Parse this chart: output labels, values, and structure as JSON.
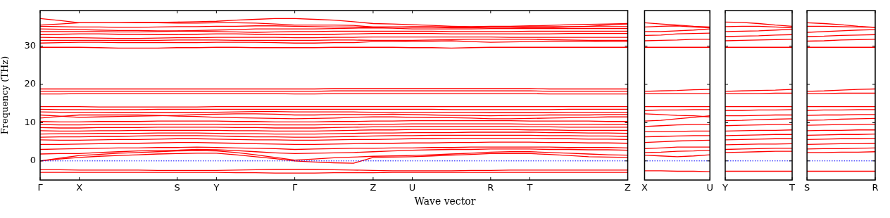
{
  "chart_data": [
    {
      "type": "line",
      "ylabel": "Frequency (THz)",
      "xlabel": "Wave vector",
      "legend": false,
      "marker": "none",
      "categories": [
        "Γ",
        null,
        "X",
        null,
        null,
        null,
        null,
        "S",
        null,
        "Y",
        null,
        null,
        null,
        "Γ",
        null,
        null,
        null,
        "Z",
        null,
        "U",
        null,
        null,
        null,
        "R",
        null,
        "T",
        null,
        null,
        null,
        null,
        "Z"
      ],
      "ylim": [
        -5,
        39.3
      ],
      "yticks": [
        0,
        10,
        20,
        30
      ],
      "ref_lines": [
        {
          "axis": "y",
          "value": 0,
          "color": "#0000ff",
          "line_style": "dotted"
        }
      ],
      "series": [
        {
          "color": "#ff0000",
          "values": [
            -2.3,
            -2.3,
            -2.4,
            -2.4,
            -2.4,
            -2.4,
            -2.5,
            -2.5,
            -2.5,
            -2.5,
            -2.4,
            -2.3,
            -2.2,
            -2.2,
            -2.2,
            -2.3,
            -2.4,
            -2.5,
            -2.6,
            -2.6,
            -2.6,
            -2.6,
            -2.5,
            -2.5,
            -2.4,
            -2.4,
            -2.4,
            -2.4,
            -2.4,
            -2.4,
            -2.4
          ]
        },
        {
          "color": "#ff0000",
          "values": [
            -3.0,
            -3.0,
            -3.0,
            -3.0,
            -3.0,
            -3.0,
            -3.0,
            -3.0,
            -3.0,
            -3.0,
            -3.1,
            -3.1,
            -3.2,
            -3.2,
            -3.2,
            -3.1,
            -3.1,
            -3.1,
            -3.0,
            -3.0,
            -3.0,
            -3.0,
            -3.0,
            -3.0,
            -3.0,
            -3.0,
            -3.0,
            -3.0,
            -3.0,
            -3.0,
            -3.0
          ]
        },
        {
          "color": "#ff0000",
          "values": [
            0,
            0.5,
            0.9,
            1.2,
            1.4,
            1.6,
            1.8,
            1.9,
            2.0,
            2.0,
            1.6,
            1.1,
            0.6,
            0,
            -0.3,
            -0.5,
            -0.6,
            0.9,
            1.0,
            1.1,
            1.3,
            1.5,
            1.7,
            1.9,
            1.9,
            1.9,
            1.7,
            1.4,
            1.1,
            1.0,
            0.9
          ]
        },
        {
          "color": "#ff0000",
          "values": [
            0,
            0.7,
            1.4,
            1.7,
            2.0,
            2.2,
            2.4,
            2.6,
            2.7,
            2.6,
            2.2,
            1.6,
            0.9,
            0.2,
            0.5,
            0.8,
            1.0,
            1.2,
            1.3,
            1.4,
            1.6,
            1.8,
            2.0,
            2.3,
            2.4,
            2.4,
            2.2,
            2.0,
            1.8,
            1.6,
            1.5
          ]
        },
        {
          "color": "#ff0000",
          "values": [
            1.8,
            1.9,
            1.9,
            2.2,
            2.4,
            2.6,
            2.7,
            2.8,
            3.0,
            2.9,
            2.7,
            2.4,
            2.1,
            1.9,
            2.0,
            2.1,
            2.2,
            2.4,
            2.6,
            2.8,
            2.9,
            3.0,
            3.0,
            3.1,
            3.1,
            3.1,
            3.0,
            3.0,
            2.9,
            2.9,
            2.8
          ]
        },
        {
          "color": "#ff0000",
          "values": [
            3.0,
            3.1,
            3.2,
            3.3,
            3.4,
            3.4,
            3.5,
            3.5,
            3.6,
            3.5,
            3.4,
            3.3,
            3.2,
            3.0,
            3.1,
            3.2,
            3.3,
            3.3,
            3.4,
            3.4,
            3.5,
            3.5,
            3.6,
            3.6,
            3.6,
            3.6,
            3.6,
            3.5,
            3.5,
            3.5,
            3.4
          ]
        },
        {
          "color": "#ff0000",
          "values": [
            4.3,
            4.3,
            4.4,
            4.5,
            4.6,
            4.6,
            4.7,
            4.8,
            4.8,
            4.7,
            4.6,
            4.5,
            4.4,
            4.3,
            4.3,
            4.4,
            4.5,
            4.6,
            4.6,
            4.7,
            4.7,
            4.8,
            4.8,
            4.9,
            4.9,
            4.9,
            4.8,
            4.8,
            4.7,
            4.7,
            4.6
          ]
        },
        {
          "color": "#ff0000",
          "values": [
            5.5,
            5.4,
            5.4,
            5.5,
            5.6,
            5.6,
            5.7,
            5.8,
            5.8,
            5.7,
            5.6,
            5.5,
            5.5,
            5.4,
            5.4,
            5.5,
            5.6,
            5.6,
            5.7,
            5.8,
            5.8,
            5.9,
            5.9,
            5.9,
            5.9,
            5.9,
            5.8,
            5.8,
            5.7,
            5.7,
            5.6
          ]
        },
        {
          "color": "#ff0000",
          "values": [
            6.2,
            6.3,
            6.3,
            6.4,
            6.4,
            6.5,
            6.6,
            6.6,
            6.6,
            6.5,
            6.4,
            6.3,
            6.3,
            6.2,
            6.2,
            6.3,
            6.4,
            6.5,
            6.6,
            6.6,
            6.7,
            6.7,
            6.7,
            6.7,
            6.7,
            6.7,
            6.6,
            6.6,
            6.5,
            6.5,
            6.4
          ]
        },
        {
          "color": "#ff0000",
          "values": [
            7.0,
            7.1,
            7.1,
            7.2,
            7.2,
            7.2,
            7.3,
            7.3,
            7.3,
            7.2,
            7.1,
            7.1,
            7.0,
            7.0,
            7.0,
            7.1,
            7.2,
            7.3,
            7.3,
            7.4,
            7.4,
            7.4,
            7.5,
            7.5,
            7.5,
            7.5,
            7.4,
            7.4,
            7.3,
            7.3,
            7.2
          ]
        },
        {
          "color": "#ff0000",
          "values": [
            7.9,
            7.8,
            7.8,
            7.9,
            7.9,
            8.0,
            8.0,
            8.0,
            8.0,
            8.0,
            7.9,
            7.9,
            7.8,
            7.8,
            7.8,
            7.9,
            8.0,
            8.1,
            8.1,
            8.2,
            8.2,
            8.2,
            8.2,
            8.2,
            8.2,
            8.1,
            8.1,
            8.0,
            8.0,
            8.0,
            8.0
          ]
        },
        {
          "color": "#ff0000",
          "values": [
            8.7,
            8.6,
            8.6,
            8.7,
            8.7,
            8.7,
            8.8,
            8.8,
            8.8,
            8.8,
            8.7,
            8.7,
            8.6,
            8.6,
            8.6,
            8.7,
            8.8,
            8.9,
            8.9,
            9.0,
            9.0,
            9.0,
            9.0,
            9.0,
            9.0,
            8.9,
            8.9,
            8.8,
            8.8,
            8.8,
            8.8
          ]
        },
        {
          "color": "#ff0000",
          "values": [
            9.5,
            9.4,
            9.4,
            9.5,
            9.5,
            9.5,
            9.6,
            9.6,
            9.6,
            9.6,
            9.5,
            9.5,
            9.4,
            9.4,
            9.4,
            9.5,
            9.5,
            9.6,
            9.6,
            9.7,
            9.7,
            9.7,
            9.7,
            9.7,
            9.7,
            9.6,
            9.6,
            9.6,
            9.6,
            9.5,
            9.5
          ]
        },
        {
          "color": "#ff0000",
          "values": [
            10.3,
            10.2,
            10.2,
            10.3,
            10.3,
            10.3,
            10.4,
            10.4,
            10.4,
            10.4,
            10.3,
            10.3,
            10.2,
            10.2,
            10.2,
            10.3,
            10.3,
            10.4,
            10.4,
            10.5,
            10.5,
            10.5,
            10.5,
            10.5,
            10.5,
            10.4,
            10.4,
            10.4,
            10.4,
            10.3,
            10.3
          ]
        },
        {
          "color": "#ff0000",
          "values": [
            11.2,
            11.6,
            12.0,
            12.0,
            12.0,
            12.0,
            11.9,
            11.7,
            11.6,
            11.4,
            11.3,
            11.2,
            11.1,
            11.0,
            11.1,
            11.2,
            11.4,
            11.5,
            11.5,
            11.4,
            11.3,
            11.3,
            11.2,
            11.0,
            11.0,
            11.1,
            11.2,
            11.3,
            11.4,
            11.5,
            11.5
          ]
        },
        {
          "color": "#ff0000",
          "values": [
            12.0,
            11.7,
            11.4,
            11.5,
            11.6,
            11.7,
            11.8,
            11.9,
            12.1,
            12.2,
            12.3,
            12.3,
            12.2,
            12.0,
            12.0,
            12.1,
            12.1,
            12.1,
            12.2,
            12.1,
            12.0,
            11.9,
            11.9,
            11.8,
            11.9,
            11.9,
            12.0,
            12.0,
            12.0,
            12.1,
            12.1
          ]
        },
        {
          "color": "#ff0000",
          "values": [
            12.8,
            12.7,
            12.7,
            12.7,
            12.6,
            12.6,
            12.6,
            12.6,
            12.6,
            12.7,
            12.8,
            12.9,
            12.9,
            12.8,
            12.8,
            12.8,
            12.8,
            12.7,
            12.7,
            12.7,
            12.7,
            12.7,
            12.7,
            12.6,
            12.6,
            12.6,
            12.6,
            12.7,
            12.7,
            12.7,
            12.7
          ]
        },
        {
          "color": "#ff0000",
          "values": [
            13.5,
            13.4,
            13.4,
            13.4,
            13.4,
            13.4,
            13.5,
            13.5,
            13.5,
            13.5,
            13.5,
            13.5,
            13.5,
            13.5,
            13.5,
            13.5,
            13.5,
            13.5,
            13.5,
            13.5,
            13.5,
            13.4,
            13.4,
            13.4,
            13.4,
            13.4,
            13.4,
            13.5,
            13.5,
            13.5,
            13.5
          ]
        },
        {
          "color": "#ff0000",
          "values": [
            14.2,
            14.2,
            14.2,
            14.1,
            14.1,
            14.1,
            14.1,
            14.1,
            14.1,
            14.2,
            14.2,
            14.2,
            14.2,
            14.2,
            14.2,
            14.2,
            14.2,
            14.2,
            14.2,
            14.2,
            14.2,
            14.2,
            14.2,
            14.2,
            14.2,
            14.2,
            14.2,
            14.2,
            14.2,
            14.2,
            14.2
          ]
        },
        {
          "color": "#ff0000",
          "values": [
            17.5,
            17.5,
            17.6,
            17.6,
            17.6,
            17.6,
            17.6,
            17.6,
            17.6,
            17.6,
            17.6,
            17.6,
            17.6,
            17.5,
            17.5,
            17.6,
            17.6,
            17.6,
            17.6,
            17.6,
            17.6,
            17.6,
            17.6,
            17.6,
            17.6,
            17.6,
            17.5,
            17.5,
            17.5,
            17.5,
            17.5
          ]
        },
        {
          "color": "#ff0000",
          "values": [
            18.2,
            18.2,
            18.2,
            18.2,
            18.2,
            18.2,
            18.2,
            18.2,
            18.2,
            18.2,
            18.2,
            18.2,
            18.2,
            18.2,
            18.2,
            18.3,
            18.3,
            18.3,
            18.3,
            18.3,
            18.3,
            18.3,
            18.3,
            18.3,
            18.3,
            18.3,
            18.2,
            18.2,
            18.2,
            18.2,
            18.2
          ]
        },
        {
          "color": "#ff0000",
          "values": [
            18.8,
            18.8,
            18.8,
            18.8,
            18.8,
            18.8,
            18.8,
            18.8,
            18.8,
            18.8,
            18.8,
            18.8,
            18.8,
            18.8,
            18.8,
            18.9,
            18.9,
            18.9,
            18.9,
            18.9,
            18.9,
            18.9,
            18.9,
            18.9,
            18.9,
            18.9,
            18.8,
            18.8,
            18.8,
            18.8,
            18.8
          ]
        },
        {
          "color": "#ff0000",
          "values": [
            29.7,
            29.7,
            29.7,
            29.6,
            29.5,
            29.5,
            29.5,
            29.6,
            29.6,
            29.7,
            29.7,
            29.6,
            29.6,
            29.6,
            29.6,
            29.7,
            29.7,
            29.7,
            29.7,
            29.6,
            29.6,
            29.5,
            29.6,
            29.7,
            29.7,
            29.7,
            29.7,
            29.7,
            29.7,
            29.7,
            29.7
          ]
        },
        {
          "color": "#ff0000",
          "values": [
            30.8,
            30.9,
            31.0,
            31.0,
            30.9,
            30.9,
            30.9,
            30.9,
            30.9,
            31.0,
            31.0,
            31.0,
            30.9,
            30.8,
            30.8,
            30.9,
            30.9,
            31.2,
            31.2,
            31.3,
            31.3,
            31.4,
            31.2,
            31.0,
            31.1,
            31.2,
            31.3,
            31.3,
            31.3,
            31.2,
            31.2
          ]
        },
        {
          "color": "#ff0000",
          "values": [
            31.5,
            31.5,
            31.5,
            31.5,
            31.5,
            31.5,
            31.5,
            31.6,
            31.6,
            31.6,
            31.5,
            31.5,
            31.5,
            31.5,
            31.5,
            31.6,
            31.6,
            31.5,
            31.5,
            31.5,
            31.6,
            31.7,
            31.8,
            31.8,
            31.8,
            31.8,
            31.7,
            31.6,
            31.5,
            31.5,
            31.5
          ]
        },
        {
          "color": "#ff0000",
          "values": [
            32.3,
            32.2,
            32.2,
            32.1,
            32.0,
            32.0,
            32.1,
            32.2,
            32.2,
            32.3,
            32.3,
            32.3,
            32.3,
            32.2,
            32.2,
            32.3,
            32.3,
            32.4,
            32.4,
            32.4,
            32.4,
            32.4,
            32.4,
            32.4,
            32.3,
            32.3,
            32.3,
            32.3,
            32.3,
            32.3,
            32.3
          ]
        },
        {
          "color": "#ff0000",
          "values": [
            33.0,
            33.1,
            33.2,
            33.2,
            33.1,
            33.1,
            33.0,
            33.0,
            33.1,
            33.2,
            33.2,
            33.1,
            33.1,
            33.0,
            33.0,
            33.1,
            33.2,
            33.3,
            33.3,
            33.3,
            33.3,
            33.2,
            33.2,
            33.2,
            33.2,
            33.2,
            33.2,
            33.3,
            33.3,
            33.3,
            33.3
          ]
        },
        {
          "color": "#ff0000",
          "values": [
            33.8,
            33.8,
            33.8,
            33.8,
            33.7,
            33.7,
            33.8,
            33.9,
            33.9,
            33.8,
            33.7,
            33.6,
            33.7,
            33.8,
            33.8,
            33.9,
            33.9,
            33.9,
            33.9,
            33.9,
            33.9,
            33.8,
            33.8,
            33.8,
            33.8,
            33.9,
            33.9,
            33.9,
            33.9,
            33.9,
            33.9
          ]
        },
        {
          "color": "#ff0000",
          "values": [
            34.5,
            34.4,
            34.3,
            34.2,
            34.1,
            34.1,
            34.0,
            34.0,
            34.1,
            34.2,
            34.3,
            34.5,
            34.5,
            34.5,
            34.5,
            34.6,
            34.7,
            34.8,
            34.7,
            34.5,
            34.5,
            34.5,
            34.5,
            34.6,
            34.6,
            34.6,
            34.6,
            34.6,
            34.6,
            34.6,
            34.6
          ]
        },
        {
          "color": "#ff0000",
          "values": [
            35.2,
            35.1,
            35.0,
            35.0,
            34.9,
            34.9,
            35.0,
            35.1,
            35.1,
            35.2,
            35.2,
            35.3,
            35.3,
            35.2,
            35.1,
            35.0,
            35.0,
            35.0,
            35.0,
            35.1,
            35.1,
            35.0,
            35.0,
            35.0,
            35.0,
            35.1,
            35.1,
            35.1,
            35.1,
            35.1,
            35.1
          ]
        },
        {
          "color": "#ff0000",
          "values": [
            35.5,
            35.8,
            36.1,
            36.1,
            36.1,
            36.1,
            36.1,
            36.0,
            36.0,
            36.1,
            36.1,
            36.0,
            35.8,
            35.5,
            35.5,
            35.5,
            35.4,
            35.0,
            35.0,
            34.9,
            34.9,
            34.8,
            34.8,
            34.9,
            34.9,
            34.8,
            34.8,
            35.0,
            35.2,
            35.5,
            35.8
          ]
        },
        {
          "color": "#ff0000",
          "values": [
            37.2,
            36.7,
            36.1,
            36.1,
            36.1,
            36.2,
            36.2,
            36.3,
            36.4,
            36.5,
            36.8,
            37.0,
            37.2,
            37.2,
            37.0,
            36.8,
            36.4,
            35.9,
            35.8,
            35.6,
            35.4,
            35.2,
            35.1,
            35.2,
            35.2,
            35.3,
            35.4,
            35.6,
            35.7,
            35.8,
            35.9
          ]
        }
      ]
    },
    {
      "type": "line",
      "legend": false,
      "marker": "none",
      "tick_labels": "x",
      "categories": [
        "X",
        null,
        null,
        null,
        "U"
      ],
      "ylim": [
        -5,
        39.3
      ],
      "yticks": [
        0,
        10,
        20,
        30
      ],
      "ref_lines": [
        {
          "axis": "y",
          "value": 0,
          "color": "#0000ff",
          "line_style": "dotted"
        }
      ],
      "series": [
        {
          "color": "#ff0000",
          "values": [
            -2.6,
            -2.6,
            -2.7,
            -2.7,
            -2.8
          ]
        },
        {
          "color": "#ff0000",
          "values": [
            1.5,
            1.3,
            1.1,
            1.3,
            1.6
          ]
        },
        {
          "color": "#ff0000",
          "values": [
            2.2,
            2.3,
            2.5,
            2.6,
            2.8
          ]
        },
        {
          "color": "#ff0000",
          "values": [
            3.2,
            3.4,
            3.6,
            3.6,
            3.6
          ]
        },
        {
          "color": "#ff0000",
          "values": [
            4.8,
            5.0,
            5.2,
            5.3,
            5.4
          ]
        },
        {
          "color": "#ff0000",
          "values": [
            6.3,
            6.4,
            6.5,
            6.6,
            6.6
          ]
        },
        {
          "color": "#ff0000",
          "values": [
            7.6,
            7.6,
            7.7,
            7.8,
            7.8
          ]
        },
        {
          "color": "#ff0000",
          "values": [
            9.0,
            9.2,
            9.4,
            9.5,
            9.5
          ]
        },
        {
          "color": "#ff0000",
          "values": [
            10.4,
            10.6,
            11.0,
            11.4,
            11.8
          ]
        },
        {
          "color": "#ff0000",
          "values": [
            12.3,
            12.1,
            11.9,
            11.8,
            11.5
          ]
        },
        {
          "color": "#ff0000",
          "values": [
            13.2,
            13.3,
            13.3,
            13.4,
            13.4
          ]
        },
        {
          "color": "#ff0000",
          "values": [
            14.2,
            14.2,
            14.2,
            14.2,
            14.2
          ]
        },
        {
          "color": "#ff0000",
          "values": [
            17.6,
            17.6,
            17.6,
            17.6,
            17.6
          ]
        },
        {
          "color": "#ff0000",
          "values": [
            18.2,
            18.3,
            18.4,
            18.6,
            18.7
          ]
        },
        {
          "color": "#ff0000",
          "values": [
            29.7,
            29.7,
            29.7,
            29.7,
            29.7
          ]
        },
        {
          "color": "#ff0000",
          "values": [
            31.4,
            31.5,
            31.6,
            31.8,
            31.8
          ]
        },
        {
          "color": "#ff0000",
          "values": [
            32.8,
            32.9,
            33.2,
            33.3,
            33.4
          ]
        },
        {
          "color": "#ff0000",
          "values": [
            33.8,
            33.8,
            34.0,
            34.2,
            34.5
          ]
        },
        {
          "color": "#ff0000",
          "values": [
            35.0,
            35.2,
            35.3,
            35.0,
            34.8
          ]
        },
        {
          "color": "#ff0000",
          "values": [
            36.1,
            35.8,
            35.5,
            35.2,
            35.0
          ]
        }
      ]
    },
    {
      "type": "line",
      "legend": false,
      "marker": "none",
      "tick_labels": "x",
      "categories": [
        "Y",
        null,
        null,
        null,
        "T"
      ],
      "ylim": [
        -5,
        39.3
      ],
      "yticks": [
        0,
        10,
        20,
        30
      ],
      "ref_lines": [
        {
          "axis": "y",
          "value": 0,
          "color": "#0000ff",
          "line_style": "dotted"
        }
      ],
      "series": [
        {
          "color": "#ff0000",
          "values": [
            -2.7,
            -2.7,
            -2.7,
            -2.7,
            -2.7
          ]
        },
        {
          "color": "#ff0000",
          "values": [
            2.2,
            2.3,
            2.4,
            2.5,
            2.5
          ]
        },
        {
          "color": "#ff0000",
          "values": [
            3.0,
            3.1,
            3.2,
            3.3,
            3.3
          ]
        },
        {
          "color": "#ff0000",
          "values": [
            4.2,
            4.3,
            4.4,
            4.4,
            4.5
          ]
        },
        {
          "color": "#ff0000",
          "values": [
            5.5,
            5.6,
            5.7,
            5.8,
            5.8
          ]
        },
        {
          "color": "#ff0000",
          "values": [
            6.6,
            6.7,
            6.8,
            6.9,
            6.9
          ]
        },
        {
          "color": "#ff0000",
          "values": [
            7.8,
            7.9,
            8.0,
            8.0,
            8.1
          ]
        },
        {
          "color": "#ff0000",
          "values": [
            9.2,
            9.3,
            9.4,
            9.5,
            9.5
          ]
        },
        {
          "color": "#ff0000",
          "values": [
            10.5,
            10.6,
            10.8,
            10.9,
            11.0
          ]
        },
        {
          "color": "#ff0000",
          "values": [
            11.8,
            11.8,
            11.9,
            12.0,
            12.0
          ]
        },
        {
          "color": "#ff0000",
          "values": [
            13.2,
            13.2,
            13.3,
            13.3,
            13.4
          ]
        },
        {
          "color": "#ff0000",
          "values": [
            14.2,
            14.2,
            14.2,
            14.2,
            14.2
          ]
        },
        {
          "color": "#ff0000",
          "values": [
            17.6,
            17.6,
            17.6,
            17.7,
            17.7
          ]
        },
        {
          "color": "#ff0000",
          "values": [
            18.2,
            18.3,
            18.4,
            18.5,
            18.7
          ]
        },
        {
          "color": "#ff0000",
          "values": [
            29.7,
            29.7,
            29.7,
            29.7,
            29.7
          ]
        },
        {
          "color": "#ff0000",
          "values": [
            31.4,
            31.5,
            31.6,
            31.7,
            31.8
          ]
        },
        {
          "color": "#ff0000",
          "values": [
            32.5,
            32.6,
            32.7,
            32.9,
            33.0
          ]
        },
        {
          "color": "#ff0000",
          "values": [
            33.8,
            33.9,
            34.0,
            34.2,
            34.4
          ]
        },
        {
          "color": "#ff0000",
          "values": [
            35.1,
            35.2,
            35.2,
            35.0,
            34.8
          ]
        },
        {
          "color": "#ff0000",
          "values": [
            36.3,
            36.2,
            35.9,
            35.5,
            35.2
          ]
        }
      ]
    },
    {
      "type": "line",
      "legend": false,
      "marker": "none",
      "tick_labels": "x",
      "categories": [
        "S",
        null,
        null,
        null,
        "R"
      ],
      "ylim": [
        -5,
        39.3
      ],
      "yticks": [
        0,
        10,
        20,
        30
      ],
      "ref_lines": [
        {
          "axis": "y",
          "value": 0,
          "color": "#0000ff",
          "line_style": "dotted"
        }
      ],
      "series": [
        {
          "color": "#ff0000",
          "values": [
            -2.7,
            -2.7,
            -2.7,
            -2.7,
            -2.7
          ]
        },
        {
          "color": "#ff0000",
          "values": [
            2.2,
            2.2,
            2.3,
            2.3,
            2.4
          ]
        },
        {
          "color": "#ff0000",
          "values": [
            3.1,
            3.2,
            3.2,
            3.3,
            3.4
          ]
        },
        {
          "color": "#ff0000",
          "values": [
            4.3,
            4.4,
            4.5,
            4.5,
            4.6
          ]
        },
        {
          "color": "#ff0000",
          "values": [
            5.6,
            5.7,
            5.8,
            5.8,
            5.9
          ]
        },
        {
          "color": "#ff0000",
          "values": [
            6.7,
            6.8,
            6.9,
            6.9,
            7.0
          ]
        },
        {
          "color": "#ff0000",
          "values": [
            7.9,
            8.0,
            8.0,
            8.1,
            8.1
          ]
        },
        {
          "color": "#ff0000",
          "values": [
            9.3,
            9.4,
            9.5,
            9.5,
            9.6
          ]
        },
        {
          "color": "#ff0000",
          "values": [
            10.6,
            10.7,
            10.9,
            11.0,
            11.1
          ]
        },
        {
          "color": "#ff0000",
          "values": [
            11.9,
            12.0,
            12.0,
            12.1,
            12.1
          ]
        },
        {
          "color": "#ff0000",
          "values": [
            13.2,
            13.3,
            13.3,
            13.4,
            13.4
          ]
        },
        {
          "color": "#ff0000",
          "values": [
            14.2,
            14.2,
            14.2,
            14.2,
            14.2
          ]
        },
        {
          "color": "#ff0000",
          "values": [
            17.6,
            17.6,
            17.7,
            17.7,
            17.7
          ]
        },
        {
          "color": "#ff0000",
          "values": [
            18.2,
            18.3,
            18.5,
            18.7,
            18.8
          ]
        },
        {
          "color": "#ff0000",
          "values": [
            29.7,
            29.7,
            29.7,
            29.7,
            29.7
          ]
        },
        {
          "color": "#ff0000",
          "values": [
            31.3,
            31.4,
            31.6,
            31.7,
            31.8
          ]
        },
        {
          "color": "#ff0000",
          "values": [
            32.5,
            32.6,
            32.8,
            32.9,
            33.0
          ]
        },
        {
          "color": "#ff0000",
          "values": [
            33.6,
            33.8,
            34.0,
            34.2,
            34.3
          ]
        },
        {
          "color": "#ff0000",
          "values": [
            35.2,
            35.2,
            35.1,
            35.0,
            34.9
          ]
        },
        {
          "color": "#ff0000",
          "values": [
            36.1,
            35.9,
            35.6,
            35.2,
            34.9
          ]
        }
      ]
    }
  ]
}
